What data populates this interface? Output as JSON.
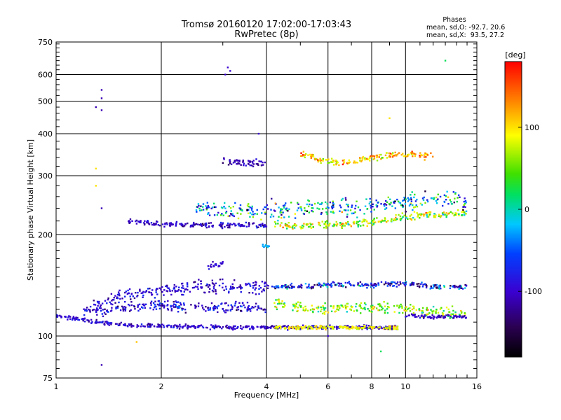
{
  "chart_data": {
    "type": "scatter",
    "title": "Tromsø 20160120 17:02:00-17:03:43",
    "subtitle": "RwPretec (8p)",
    "xlabel": "Frequency [MHz]",
    "ylabel": "Stationary phase Virtual Height [km]",
    "xscale": "log",
    "yscale": "log",
    "xlim": [
      1,
      16
    ],
    "ylim": [
      75,
      750
    ],
    "xticks": [
      1,
      2,
      4,
      6,
      8,
      10,
      16
    ],
    "yticks": [
      75,
      100,
      200,
      300,
      400,
      500,
      600,
      750
    ],
    "grid": true,
    "colorbar": {
      "label": "[deg]",
      "range": [
        -180,
        180
      ],
      "ticks": [
        100,
        0,
        -100
      ]
    },
    "stats": {
      "heading": "Phases",
      "o_line": "mean, sd,O: -92.7, 20.6",
      "x_line": "mean, sd,X:  93.5, 27.2"
    },
    "traces": [
      {
        "x": [
          1.0,
          1.3,
          1.6,
          2.0,
          2.5,
          3.0,
          3.5,
          4.0,
          5.0,
          6.0,
          7.0,
          8.0,
          9.0,
          9.5
        ],
        "y": [
          115,
          110,
          108,
          107,
          107,
          106,
          106,
          106,
          106,
          106,
          106,
          106,
          106,
          106
        ],
        "spread": 0.012,
        "phase": -100,
        "phase_jitter": 25
      },
      {
        "x": [
          4.2,
          5.0,
          6.0,
          7.0,
          8.0,
          9.5
        ],
        "y": [
          106,
          106,
          106,
          106,
          106,
          106
        ],
        "spread": 0.01,
        "phase": 90,
        "phase_jitter": 25
      },
      {
        "x": [
          1.2,
          1.5,
          1.8,
          2.2,
          2.8,
          3.4,
          4.0
        ],
        "y": [
          120,
          130,
          135,
          138,
          140,
          140,
          140
        ],
        "spread": 0.04,
        "phase": -95,
        "phase_jitter": 30
      },
      {
        "x": [
          1.3,
          1.6,
          2.0,
          2.6,
          3.2,
          4.0
        ],
        "y": [
          118,
          122,
          124,
          122,
          122,
          120
        ],
        "spread": 0.03,
        "phase": -90,
        "phase_jitter": 40
      },
      {
        "x": [
          4.0,
          5.0,
          6.0,
          7.0,
          8.0,
          9.0,
          10.0,
          12.0,
          15.0
        ],
        "y": [
          140,
          140,
          142,
          142,
          142,
          143,
          143,
          140,
          140
        ],
        "spread": 0.015,
        "phase": -80,
        "phase_jitter": 80
      },
      {
        "x": [
          4.2,
          5.0,
          6.0,
          7.0,
          8.0,
          10.0,
          12.0,
          15.0
        ],
        "y": [
          125,
          122,
          120,
          122,
          122,
          120,
          118,
          116
        ],
        "spread": 0.03,
        "phase": 60,
        "phase_jitter": 60
      },
      {
        "x": [
          10.0,
          12.0,
          15.0
        ],
        "y": [
          115,
          114,
          114
        ],
        "spread": 0.01,
        "phase": -100,
        "phase_jitter": 20
      },
      {
        "x": [
          1.6,
          2.0,
          2.5,
          3.0,
          3.5,
          4.0
        ],
        "y": [
          220,
          215,
          214,
          214,
          214,
          213
        ],
        "spread": 0.015,
        "phase": -100,
        "phase_jitter": 30
      },
      {
        "x": [
          4.2,
          5.0,
          6.0,
          7.0,
          8.0,
          9.0,
          10.0,
          12.0,
          15.0
        ],
        "y": [
          214,
          213,
          214,
          215,
          218,
          222,
          226,
          230,
          232
        ],
        "spread": 0.02,
        "phase": 70,
        "phase_jitter": 70
      },
      {
        "x": [
          2.5,
          3.0,
          4.0,
          5.0,
          6.0,
          8.0,
          10.0,
          12.0,
          15.0
        ],
        "y": [
          240,
          235,
          235,
          240,
          240,
          245,
          250,
          255,
          250
        ],
        "spread": 0.05,
        "phase": -20,
        "phase_jitter": 110
      },
      {
        "x": [
          5.0,
          5.5,
          6.0,
          7.0,
          8.0,
          9.0,
          10.0,
          11.0,
          12.0
        ],
        "y": [
          350,
          340,
          330,
          330,
          340,
          345,
          345,
          345,
          345
        ],
        "spread": 0.02,
        "phase": 110,
        "phase_jitter": 50
      },
      {
        "x": [
          3.0,
          3.5,
          4.0
        ],
        "y": [
          330,
          328,
          325
        ],
        "spread": 0.02,
        "phase": -110,
        "phase_jitter": 20
      },
      {
        "x": [
          2.7,
          3.0
        ],
        "y": [
          160,
          165
        ],
        "spread": 0.02,
        "phase": -100,
        "phase_jitter": 20
      },
      {
        "x": [
          3.9,
          4.1
        ],
        "y": [
          185,
          185
        ],
        "spread": 0.01,
        "phase": -20,
        "phase_jitter": 20
      }
    ],
    "points": [
      {
        "x": 1.35,
        "y": 540,
        "phase": -110
      },
      {
        "x": 1.35,
        "y": 510,
        "phase": -110
      },
      {
        "x": 1.35,
        "y": 470,
        "phase": -110
      },
      {
        "x": 1.3,
        "y": 480,
        "phase": -110
      },
      {
        "x": 1.3,
        "y": 315,
        "phase": 100
      },
      {
        "x": 1.3,
        "y": 280,
        "phase": 100
      },
      {
        "x": 1.35,
        "y": 240,
        "phase": -110
      },
      {
        "x": 3.1,
        "y": 630,
        "phase": -100
      },
      {
        "x": 3.15,
        "y": 615,
        "phase": -100
      },
      {
        "x": 3.05,
        "y": 600,
        "phase": -100
      },
      {
        "x": 13.0,
        "y": 660,
        "phase": 20
      },
      {
        "x": 9.0,
        "y": 445,
        "phase": 100
      },
      {
        "x": 3.8,
        "y": 400,
        "phase": -100
      },
      {
        "x": 1.35,
        "y": 82,
        "phase": -110
      },
      {
        "x": 1.7,
        "y": 96,
        "phase": 110
      },
      {
        "x": 8.5,
        "y": 90,
        "phase": 20
      },
      {
        "x": 6.0,
        "y": 100,
        "phase": -100
      }
    ]
  }
}
